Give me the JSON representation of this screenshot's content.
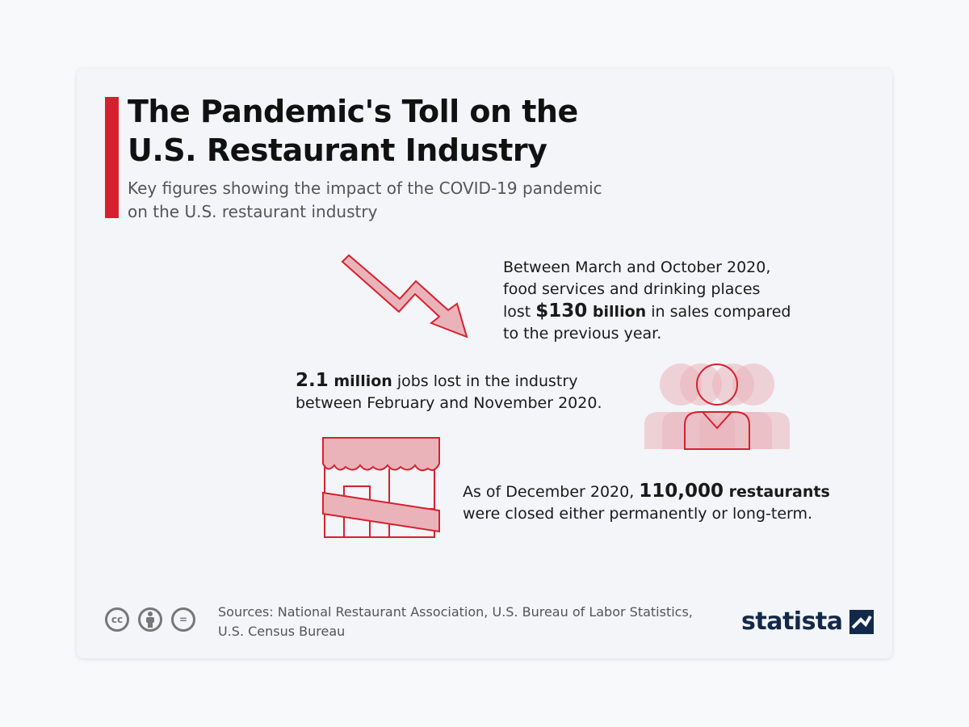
{
  "title": {
    "line1": "The Pandemic's Toll on the",
    "line2": "U.S. Restaurant Industry"
  },
  "subtitle": {
    "line1": "Key figures showing the impact of the COVID-19 pandemic",
    "line2": "on the U.S. restaurant industry"
  },
  "facts": {
    "sales": {
      "line1": "Between March and October 2020,",
      "line2": "food services and drinking places",
      "line3_pre": "lost ",
      "value": "$130",
      "unit": " billion",
      "line3_post": " in sales compared",
      "line4": "to the previous year."
    },
    "jobs": {
      "value": "2.1",
      "unit": " million",
      "line1_post": " jobs lost in the industry",
      "line2": "between February and November 2020."
    },
    "restaurants": {
      "line1_pre": "As of December 2020, ",
      "value": "110,000",
      "unit": " restaurants",
      "line2": "were closed either permanently or long-term."
    }
  },
  "footer": {
    "license_icons": [
      "cc-icon",
      "attribution-icon",
      "no-derivatives-icon"
    ],
    "license_labels": [
      "cc",
      "",
      "="
    ],
    "sources_line1": "Sources: National Restaurant Association, U.S. Bureau of Labor Statistics,",
    "sources_line2": "U.S. Census Bureau",
    "brand": "statista"
  },
  "colors": {
    "accent": "#d7202f",
    "illustration_fill": "#eab3ba",
    "illustration_stroke": "#d7202f",
    "brand": "#13294b"
  },
  "icons": [
    "down-trend-arrow-icon",
    "people-group-icon",
    "closed-storefront-icon",
    "statista-logo-icon"
  ]
}
